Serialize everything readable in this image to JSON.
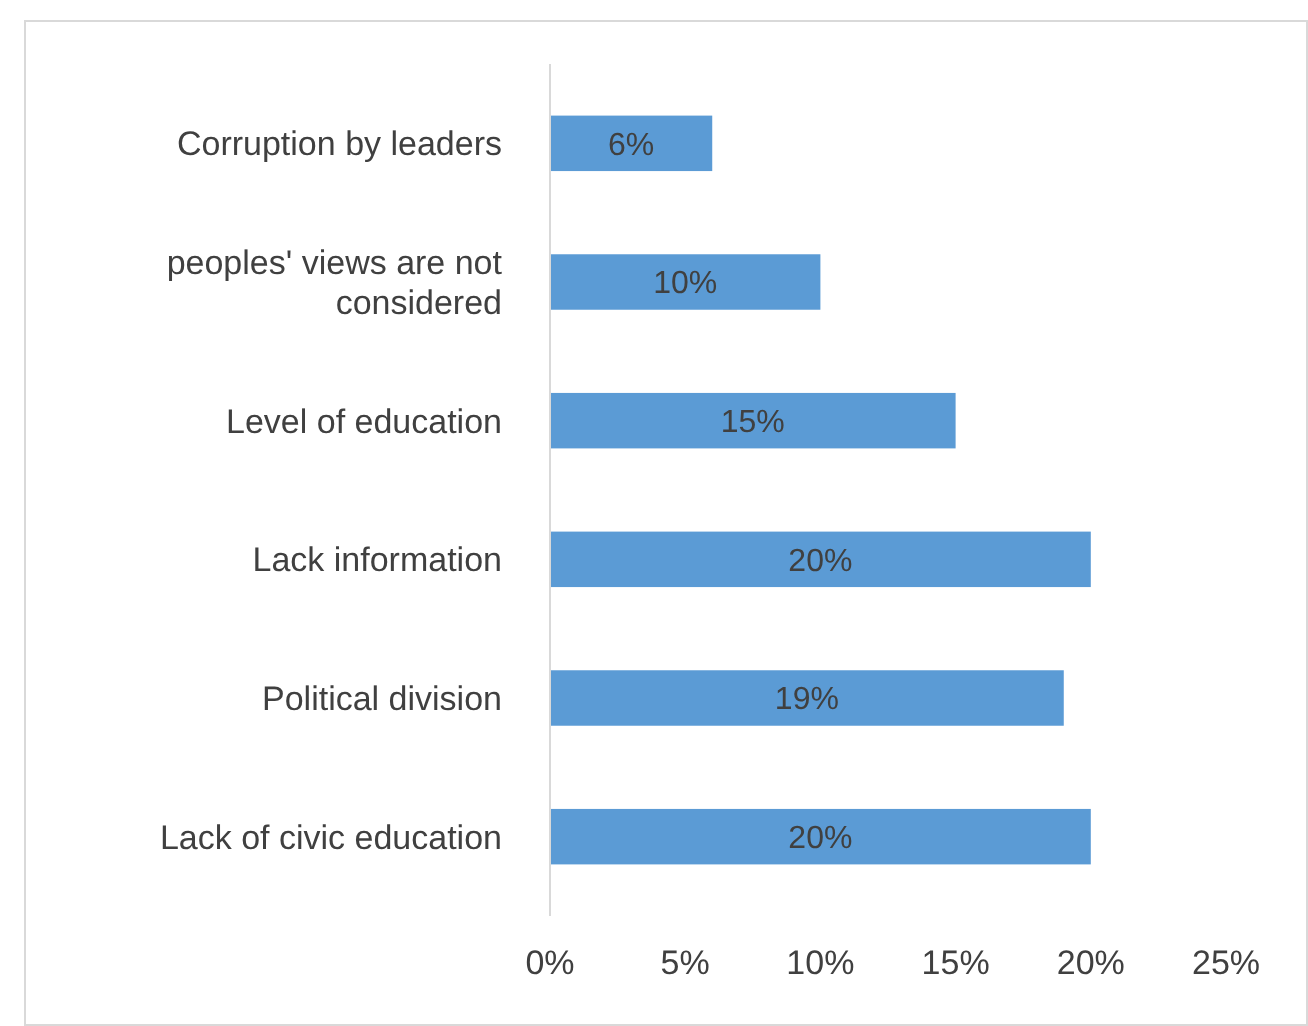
{
  "chart_data": {
    "type": "bar",
    "orientation": "horizontal",
    "categories": [
      "Corruption by leaders",
      "peoples' views are not considered",
      "Level of education",
      "Lack information",
      "Political division",
      "Lack of civic education"
    ],
    "values": [
      6,
      10,
      15,
      20,
      19,
      20
    ],
    "value_labels": [
      "6%",
      "10%",
      "15%",
      "20%",
      "19%",
      "20%"
    ],
    "color": "#5b9bd5",
    "xlim": [
      0,
      25
    ],
    "xticks": [
      {
        "value": 0,
        "label": "0%"
      },
      {
        "value": 5,
        "label": "5%"
      },
      {
        "value": 10,
        "label": "10%"
      },
      {
        "value": 15,
        "label": "15%"
      },
      {
        "value": 20,
        "label": "20%"
      },
      {
        "value": 25,
        "label": "25%"
      }
    ],
    "grid": false
  }
}
